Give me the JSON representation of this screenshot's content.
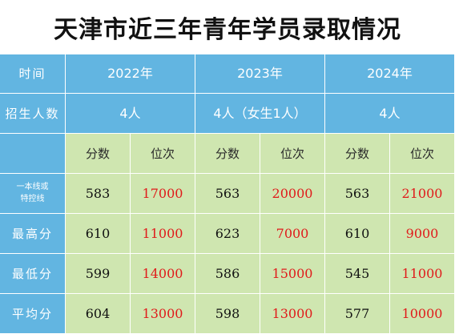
{
  "title": "天津市近三年青年学员录取情况",
  "header": {
    "time_label": "时间",
    "years": [
      "2022年",
      "2023年",
      "2024年"
    ]
  },
  "enrollment": {
    "label": "招生人数",
    "values": [
      "4人",
      "4人（女生1人）",
      "4人"
    ]
  },
  "columns": {
    "score": "分数",
    "rank": "位次"
  },
  "rows": [
    {
      "label_line1": "一本线或",
      "label_line2": "特控线",
      "cells": [
        "583",
        "17000",
        "563",
        "20000",
        "563",
        "21000"
      ]
    },
    {
      "label": "最高分",
      "cells": [
        "610",
        "11000",
        "623",
        "7000",
        "610",
        "9000"
      ]
    },
    {
      "label": "最低分",
      "cells": [
        "599",
        "14000",
        "586",
        "15000",
        "545",
        "11000"
      ]
    },
    {
      "label": "平均分",
      "cells": [
        "604",
        "13000",
        "598",
        "13000",
        "577",
        "10000"
      ]
    }
  ],
  "colors": {
    "header_blue": "#62b5e1",
    "body_green": "#cfe6b0",
    "rank_red": "#e01b1b"
  }
}
